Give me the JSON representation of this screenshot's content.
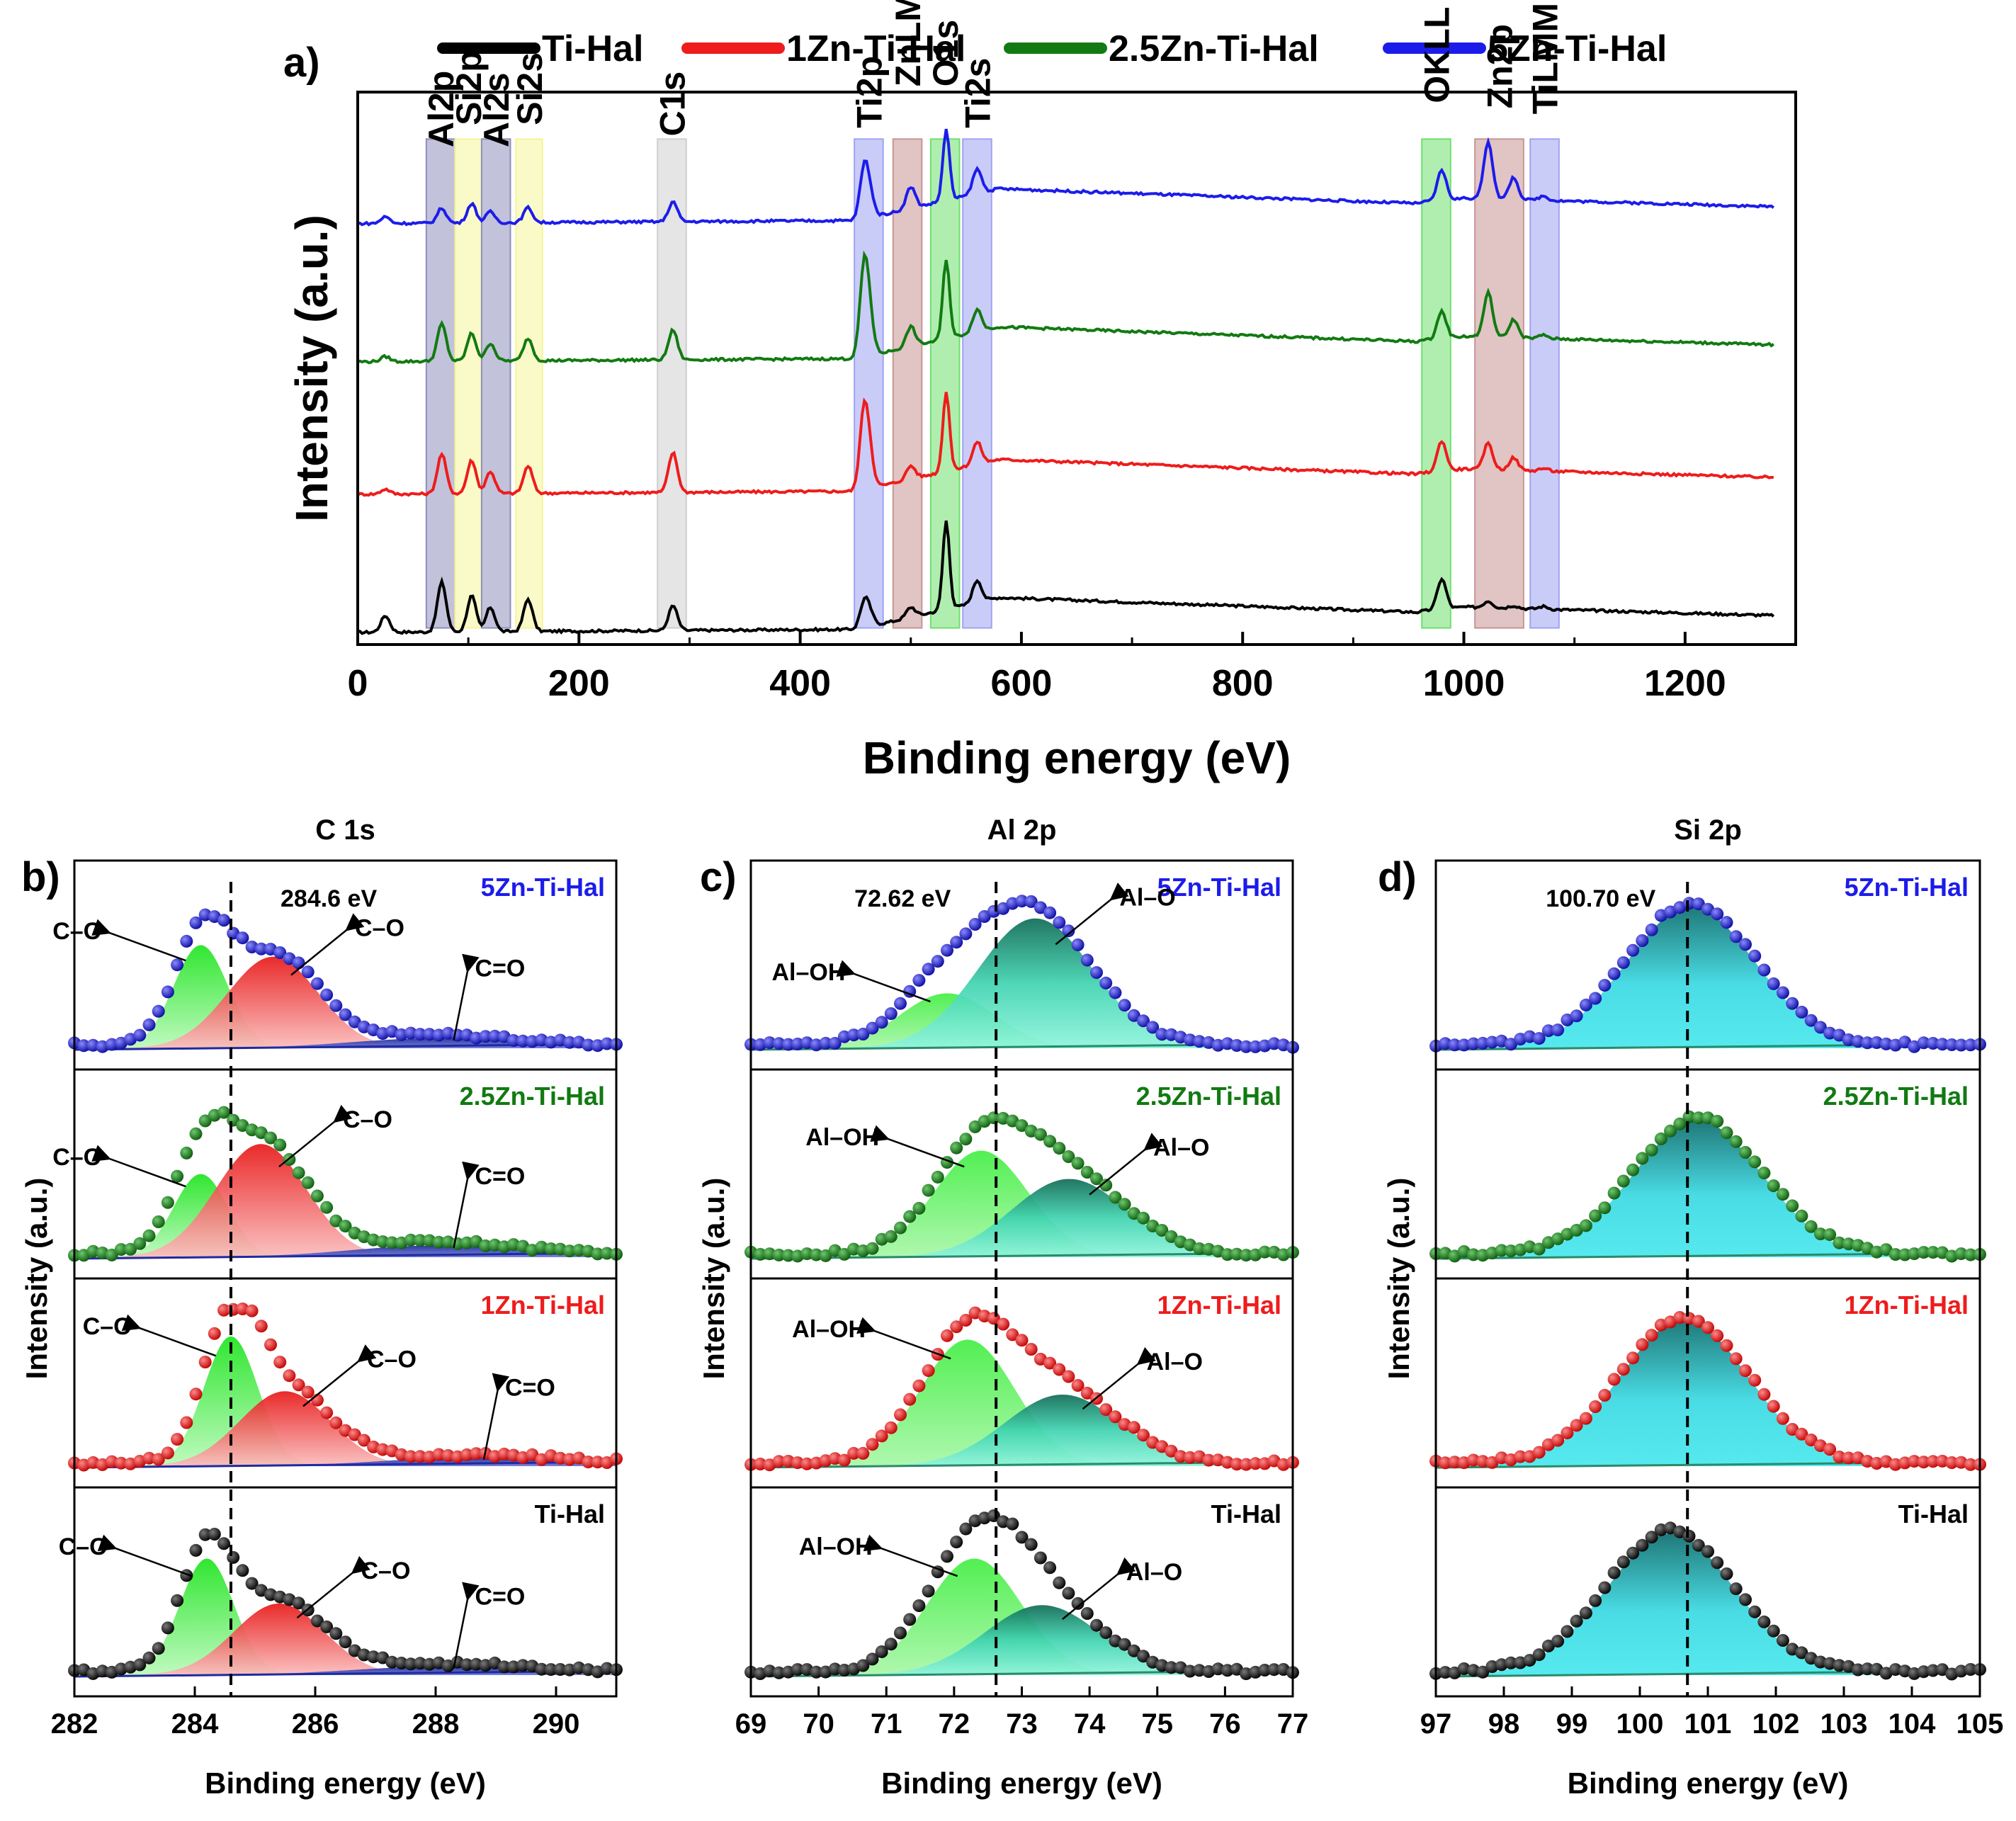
{
  "figure": {
    "panel_labels": [
      "a)",
      "b)",
      "c)",
      "d)"
    ]
  },
  "legend": {
    "entries": [
      {
        "name": "Ti-Hal",
        "color": "#000000"
      },
      {
        "name": "1Zn-Ti-Hal",
        "color": "#ee1c1c"
      },
      {
        "name": "2.5Zn-Ti-Hal",
        "color": "#127a12"
      },
      {
        "name": "5Zn-Ti-Hal",
        "color": "#1c1cea"
      }
    ]
  },
  "colors": {
    "black": "#000000",
    "red": "#ee1c1c",
    "green": "#127a12",
    "blue": "#1c1cea",
    "fit_green": "#3cf03c",
    "fit_red": "#f03030",
    "fit_blue": "#1e2aa0",
    "fit_teal": "#2fbf9a",
    "fit_cyan": "#37e0e8"
  },
  "chart_data": [
    {
      "id": "a",
      "type": "line",
      "title": "",
      "xlabel": "Binding energy (eV)",
      "ylabel": "Intensity (a.u.)",
      "xlim": [
        0,
        1300
      ],
      "ylim": [
        0,
        100
      ],
      "xticks": [
        0,
        200,
        400,
        600,
        800,
        1000,
        1200
      ],
      "grid": false,
      "legend_position": "top",
      "series": [
        {
          "name": "Ti-Hal",
          "offset": 2
        },
        {
          "name": "1Zn-Ti-Hal",
          "offset": 27
        },
        {
          "name": "2.5Zn-Ti-Hal",
          "offset": 51
        },
        {
          "name": "5Zn-Ti-Hal",
          "offset": 76
        }
      ],
      "regions": [
        {
          "label": "Al2p",
          "x0": 62,
          "x1": 88,
          "color": "#8f8fbc"
        },
        {
          "label": "Si2p",
          "x0": 88,
          "x1": 112,
          "color": "#f5f59a"
        },
        {
          "label": "Al2s",
          "x0": 112,
          "x1": 138,
          "color": "#8f8fbc"
        },
        {
          "label": "Si2s",
          "x0": 143,
          "x1": 167,
          "color": "#f5f59a"
        },
        {
          "label": "C1s",
          "x0": 271,
          "x1": 297,
          "color": "#cfcfcf"
        },
        {
          "label": "Ti2p",
          "x0": 449,
          "x1": 475,
          "color": "#9fa3f2"
        },
        {
          "label": "ZnLMM",
          "x0": 484,
          "x1": 510,
          "color": "#c89494"
        },
        {
          "label": "O1s",
          "x0": 518,
          "x1": 544,
          "color": "#6fe06f"
        },
        {
          "label": "Ti2s",
          "x0": 547,
          "x1": 573,
          "color": "#9fa3f2"
        },
        {
          "label": "OKLL",
          "x0": 962,
          "x1": 988,
          "color": "#6fe06f"
        },
        {
          "label": "Zn2p",
          "x0": 1010,
          "x1": 1054,
          "color": "#c89494"
        },
        {
          "label": "TiLMM",
          "x0": 1060,
          "x1": 1086,
          "color": "#9fa3f2"
        }
      ]
    },
    {
      "id": "b",
      "type": "line",
      "title": "C 1s",
      "xlabel": "Binding energy (eV)",
      "ylabel": "",
      "xlim": [
        282,
        291
      ],
      "xticks": [
        282,
        284,
        286,
        288,
        290
      ],
      "reference_line": 284.6,
      "reference_label": "284.6 eV",
      "components": [
        "C–C",
        "C–O",
        "C=O"
      ],
      "panels": [
        {
          "sample": "5Zn-Ti-Hal",
          "peaks": [
            {
              "label": "C–C",
              "center": 284.1,
              "height": 0.62
            },
            {
              "label": "C–O",
              "center": 285.3,
              "height": 0.55
            },
            {
              "label": "C=O",
              "center": 288.0,
              "height": 0.06
            }
          ]
        },
        {
          "sample": "2.5Zn-Ti-Hal",
          "peaks": [
            {
              "label": "C–C",
              "center": 284.1,
              "height": 0.5
            },
            {
              "label": "C–O",
              "center": 285.1,
              "height": 0.68
            },
            {
              "label": "C=O",
              "center": 288.0,
              "height": 0.07
            }
          ]
        },
        {
          "sample": "1Zn-Ti-Hal",
          "peaks": [
            {
              "label": "C–C",
              "center": 284.6,
              "height": 0.78
            },
            {
              "label": "C–O",
              "center": 285.5,
              "height": 0.45
            },
            {
              "label": "C=O",
              "center": 288.5,
              "height": 0.05
            }
          ]
        },
        {
          "sample": "Ti-Hal",
          "peaks": [
            {
              "label": "C–C",
              "center": 284.2,
              "height": 0.7
            },
            {
              "label": "C–O",
              "center": 285.4,
              "height": 0.43
            },
            {
              "label": "C=O",
              "center": 288.0,
              "height": 0.05
            }
          ]
        }
      ]
    },
    {
      "id": "c",
      "type": "line",
      "title": "Al 2p",
      "xlabel": "Binding energy (eV)",
      "ylabel": "Intensity (a.u.)",
      "xlim": [
        69,
        77
      ],
      "xticks": [
        69,
        70,
        71,
        72,
        73,
        74,
        75,
        76,
        77
      ],
      "reference_line": 72.62,
      "reference_label": "72.62 eV",
      "components": [
        "Al–OH",
        "Al–O"
      ],
      "panels": [
        {
          "sample": "5Zn-Ti-Hal",
          "peaks": [
            {
              "label": "Al–OH",
              "center": 71.9,
              "height": 0.33
            },
            {
              "label": "Al–O",
              "center": 73.2,
              "height": 0.78
            }
          ]
        },
        {
          "sample": "2.5Zn-Ti-Hal",
          "peaks": [
            {
              "label": "Al–OH",
              "center": 72.4,
              "height": 0.64
            },
            {
              "label": "Al–O",
              "center": 73.7,
              "height": 0.47
            }
          ]
        },
        {
          "sample": "1Zn-Ti-Hal",
          "peaks": [
            {
              "label": "Al–OH",
              "center": 72.2,
              "height": 0.76
            },
            {
              "label": "Al–O",
              "center": 73.6,
              "height": 0.43
            }
          ]
        },
        {
          "sample": "Ti-Hal",
          "peaks": [
            {
              "label": "Al–OH",
              "center": 72.3,
              "height": 0.7
            },
            {
              "label": "Al–O",
              "center": 73.3,
              "height": 0.42
            }
          ]
        }
      ]
    },
    {
      "id": "d",
      "type": "line",
      "title": "Si 2p",
      "xlabel": "Binding energy (eV)",
      "ylabel": "Intensity (a.u.)",
      "xlim": [
        97,
        105
      ],
      "xticks": [
        97,
        98,
        99,
        100,
        101,
        102,
        103,
        104,
        105
      ],
      "reference_line": 100.7,
      "reference_label": "100.70 eV",
      "components": [
        "Si 2p"
      ],
      "panels": [
        {
          "sample": "5Zn-Ti-Hal",
          "peaks": [
            {
              "label": "Si 2p",
              "center": 100.75,
              "height": 0.85
            }
          ]
        },
        {
          "sample": "2.5Zn-Ti-Hal",
          "peaks": [
            {
              "label": "Si 2p",
              "center": 100.85,
              "height": 0.82
            }
          ]
        },
        {
          "sample": "1Zn-Ti-Hal",
          "peaks": [
            {
              "label": "Si 2p",
              "center": 100.65,
              "height": 0.88
            }
          ]
        },
        {
          "sample": "Ti-Hal",
          "peaks": [
            {
              "label": "Si 2p",
              "center": 100.45,
              "height": 0.85
            }
          ]
        }
      ]
    }
  ]
}
